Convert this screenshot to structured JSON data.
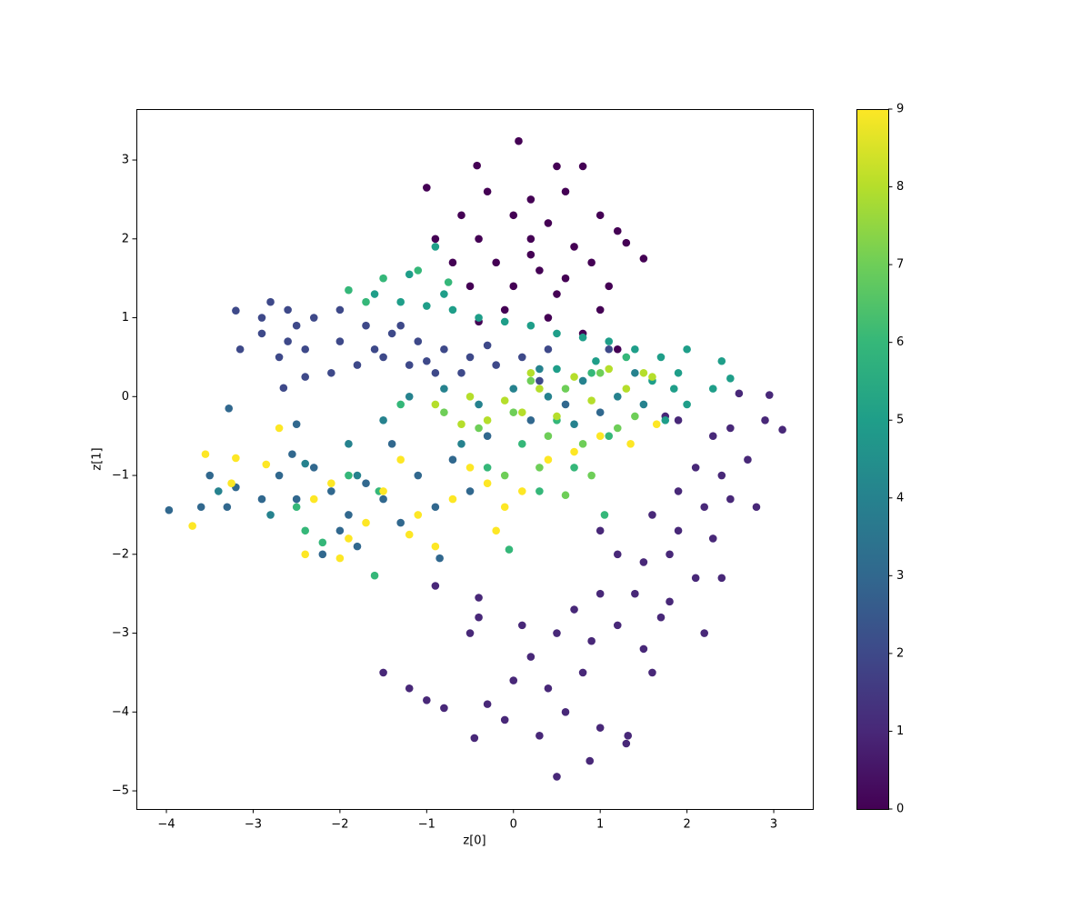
{
  "chart_data": {
    "type": "scatter",
    "xlabel": "z[0]",
    "ylabel": "z[1]",
    "xlim": [
      -4.346,
      3.45
    ],
    "ylim": [
      -5.23,
      3.646
    ],
    "xticks": [
      {
        "value": -4,
        "label": "−4"
      },
      {
        "value": -3,
        "label": "−3"
      },
      {
        "value": -2,
        "label": "−2"
      },
      {
        "value": -1,
        "label": "−1"
      },
      0,
      1,
      2,
      3
    ],
    "yticks": [
      {
        "value": -5,
        "label": "−5"
      },
      {
        "value": -4,
        "label": "−4"
      },
      {
        "value": -3,
        "label": "−3"
      },
      {
        "value": -2,
        "label": "−2"
      },
      {
        "value": -1,
        "label": "−1"
      },
      0,
      1,
      2,
      3
    ],
    "clim": [
      0,
      9
    ],
    "cticks": [
      0,
      1,
      2,
      3,
      4,
      5,
      6,
      7,
      8,
      9
    ],
    "colormap": [
      "#440154",
      "#482878",
      "#3e4989",
      "#31688e",
      "#26828e",
      "#1f9e89",
      "#35b779",
      "#6ece58",
      "#b5de2b",
      "#fde725"
    ],
    "series": [
      {
        "c": 0,
        "x": [
          0.06,
          -0.42,
          0.5,
          0.8,
          -1.0,
          -0.3,
          0.2,
          0.6,
          -0.6,
          0.0,
          0.4,
          1.0,
          1.2,
          -0.9,
          -0.4,
          0.2,
          0.7,
          1.3,
          1.5,
          -0.7,
          -0.2,
          0.3,
          0.9,
          -0.5,
          0.0,
          0.5,
          1.1,
          -0.1,
          0.4,
          1.0,
          0.8,
          1.2,
          -0.4,
          0.2,
          0.6
        ],
        "y": [
          3.24,
          2.93,
          2.92,
          2.92,
          2.65,
          2.6,
          2.5,
          2.6,
          2.3,
          2.3,
          2.2,
          2.3,
          2.1,
          2.0,
          2.0,
          2.0,
          1.9,
          1.95,
          1.75,
          1.7,
          1.7,
          1.6,
          1.7,
          1.4,
          1.4,
          1.3,
          1.4,
          1.1,
          1.0,
          1.1,
          0.8,
          0.6,
          0.95,
          1.8,
          1.5
        ]
      },
      {
        "c": 1,
        "x": [
          2.9,
          3.1,
          2.95,
          2.6,
          2.5,
          2.3,
          2.7,
          2.4,
          2.1,
          2.5,
          2.2,
          1.9,
          2.8,
          2.3,
          1.9,
          1.6,
          1.8,
          2.1,
          1.5,
          1.2,
          1.0,
          1.4,
          1.8,
          1.0,
          0.7,
          1.2,
          1.5,
          0.9,
          0.5,
          0.2,
          0.8,
          1.6,
          0.4,
          0.0,
          -0.3,
          0.6,
          1.0,
          0.3,
          -0.1,
          1.3,
          0.5,
          0.88,
          1.32,
          -0.45,
          -0.5,
          -0.9,
          -0.4,
          -1.5,
          -1.0,
          -0.8,
          -1.2,
          0.1,
          -0.4,
          1.9,
          1.75,
          2.2,
          1.7,
          2.4
        ],
        "y": [
          -0.3,
          -0.42,
          0.02,
          0.04,
          -0.4,
          -0.5,
          -0.8,
          -1.0,
          -0.9,
          -1.3,
          -1.4,
          -1.2,
          -1.4,
          -1.8,
          -1.7,
          -1.5,
          -2.0,
          -2.3,
          -2.1,
          -2.0,
          -1.7,
          -2.5,
          -2.6,
          -2.5,
          -2.7,
          -2.9,
          -3.2,
          -3.1,
          -3.0,
          -3.3,
          -3.5,
          -3.5,
          -3.7,
          -3.6,
          -3.9,
          -4.0,
          -4.2,
          -4.3,
          -4.1,
          -4.4,
          -4.82,
          -4.62,
          -4.3,
          -4.33,
          -3.0,
          -2.4,
          -2.55,
          -3.5,
          -3.85,
          -3.95,
          -3.7,
          -2.9,
          -2.8,
          -0.3,
          -0.25,
          -3.0,
          -2.8,
          -2.3
        ]
      },
      {
        "c": 2,
        "x": [
          -3.2,
          -2.8,
          -2.6,
          -2.9,
          -2.5,
          -2.3,
          -2.0,
          -2.6,
          -2.9,
          -3.15,
          -2.4,
          -2.0,
          -1.7,
          -1.4,
          -1.1,
          -0.8,
          -0.5,
          -0.2,
          0.1,
          0.4,
          -1.5,
          -1.2,
          -0.9,
          -2.1,
          -2.4,
          -2.7,
          -2.65,
          -1.8,
          -1.3,
          -0.6,
          0.3,
          -1.6,
          -1.0,
          -0.3,
          1.1
        ],
        "y": [
          1.09,
          1.2,
          1.1,
          1.0,
          0.9,
          1.0,
          1.1,
          0.7,
          0.8,
          0.6,
          0.6,
          0.7,
          0.9,
          0.8,
          0.7,
          0.6,
          0.5,
          0.4,
          0.5,
          0.6,
          0.5,
          0.4,
          0.3,
          0.3,
          0.25,
          0.5,
          0.11,
          0.4,
          0.9,
          0.3,
          0.2,
          0.6,
          0.45,
          0.65,
          0.6
        ]
      },
      {
        "c": 3,
        "x": [
          -3.28,
          -3.5,
          -3.6,
          -3.3,
          -3.2,
          -2.9,
          -2.7,
          -2.5,
          -2.3,
          -2.1,
          -1.9,
          -1.7,
          -1.5,
          -1.3,
          -1.1,
          -0.9,
          -0.7,
          -0.5,
          -2.0,
          -2.2,
          -1.8,
          -0.85,
          -0.3,
          0.2,
          0.6,
          1.0,
          -1.4,
          -2.5,
          -2.55,
          -3.97
        ],
        "y": [
          -0.15,
          -1.0,
          -1.4,
          -1.4,
          -1.15,
          -1.3,
          -1.0,
          -1.3,
          -0.9,
          -1.2,
          -1.5,
          -1.1,
          -1.3,
          -1.6,
          -1.0,
          -1.4,
          -0.8,
          -1.2,
          -1.7,
          -2.0,
          -1.9,
          -2.05,
          -0.5,
          -0.3,
          -0.1,
          -0.2,
          -0.6,
          -0.35,
          -0.73,
          -1.44
        ]
      },
      {
        "c": 4,
        "x": [
          -1.2,
          -0.8,
          -0.4,
          0.0,
          0.4,
          0.8,
          1.2,
          1.5,
          -1.5,
          -2.4,
          -1.9,
          0.3,
          0.7,
          1.4,
          -0.6,
          -1.8,
          -2.8,
          -3.4
        ],
        "y": [
          0.0,
          0.1,
          -0.1,
          0.1,
          0.0,
          0.2,
          0.0,
          -0.1,
          -0.3,
          -0.85,
          -0.6,
          0.35,
          -0.35,
          0.3,
          -0.6,
          -1.0,
          -1.5,
          -1.2
        ]
      },
      {
        "c": 5,
        "x": [
          -1.6,
          -1.3,
          -1.0,
          -0.7,
          -0.4,
          -0.1,
          0.2,
          0.5,
          0.8,
          1.1,
          1.4,
          1.7,
          2.0,
          2.4,
          2.5,
          2.3,
          1.9,
          1.6,
          1.85,
          -0.9,
          0.5,
          -1.2,
          -0.8,
          0.95,
          2.0,
          1.75
        ],
        "y": [
          1.3,
          1.2,
          1.15,
          1.1,
          1.0,
          0.95,
          0.9,
          0.8,
          0.75,
          0.7,
          0.6,
          0.5,
          0.6,
          0.45,
          0.23,
          0.1,
          0.3,
          0.2,
          0.1,
          1.9,
          0.35,
          1.55,
          1.3,
          0.45,
          -0.1,
          -0.3
        ]
      },
      {
        "c": 6,
        "x": [
          -1.9,
          -1.5,
          -1.1,
          -0.75,
          -1.7,
          0.9,
          0.5,
          0.1,
          -0.3,
          0.7,
          1.1,
          -1.6,
          -0.05,
          -2.4,
          -2.2,
          -2.5,
          1.3,
          0.3,
          -1.3,
          -1.9,
          1.05,
          -1.55
        ],
        "y": [
          1.35,
          1.5,
          1.6,
          1.45,
          1.2,
          0.3,
          -0.3,
          -0.6,
          -0.9,
          -0.9,
          -0.5,
          -2.27,
          -1.94,
          -1.7,
          -1.85,
          -1.4,
          0.5,
          -1.2,
          -0.1,
          -1.0,
          -1.5,
          -1.2
        ]
      },
      {
        "c": 7,
        "x": [
          0.0,
          0.4,
          0.8,
          1.2,
          -0.4,
          0.2,
          0.6,
          1.0,
          -0.8,
          0.3,
          0.9,
          -0.1,
          1.4,
          0.6
        ],
        "y": [
          -0.2,
          -0.5,
          -0.6,
          -0.4,
          -0.4,
          0.2,
          0.1,
          0.3,
          -0.2,
          -0.9,
          -1.0,
          -1.0,
          -0.25,
          -1.25
        ]
      },
      {
        "c": 8,
        "x": [
          -0.9,
          -0.5,
          -0.1,
          0.3,
          0.7,
          1.1,
          1.5,
          -0.3,
          0.1,
          0.5,
          0.9,
          1.3,
          -0.6,
          0.2,
          1.6
        ],
        "y": [
          -0.1,
          0.0,
          -0.05,
          0.1,
          0.25,
          0.35,
          0.3,
          -0.3,
          -0.2,
          -0.25,
          -0.05,
          0.1,
          -0.35,
          0.3,
          0.25
        ]
      },
      {
        "c": 9,
        "x": [
          -3.55,
          -3.7,
          -3.2,
          -3.25,
          -2.85,
          -2.7,
          -2.4,
          -2.3,
          -2.1,
          -1.9,
          -1.7,
          -1.5,
          -1.3,
          -1.1,
          -0.9,
          -0.7,
          -0.5,
          -0.3,
          -0.1,
          0.1,
          0.4,
          0.7,
          1.0,
          1.35,
          1.65,
          -1.2,
          -2.0,
          -0.2
        ],
        "y": [
          -0.73,
          -1.64,
          -0.78,
          -1.1,
          -0.86,
          -0.4,
          -2.0,
          -1.3,
          -1.1,
          -1.8,
          -1.6,
          -1.2,
          -0.8,
          -1.5,
          -1.9,
          -1.3,
          -0.9,
          -1.1,
          -1.4,
          -1.2,
          -0.8,
          -0.7,
          -0.5,
          -0.6,
          -0.35,
          -1.75,
          -2.05,
          -1.7
        ]
      }
    ]
  }
}
